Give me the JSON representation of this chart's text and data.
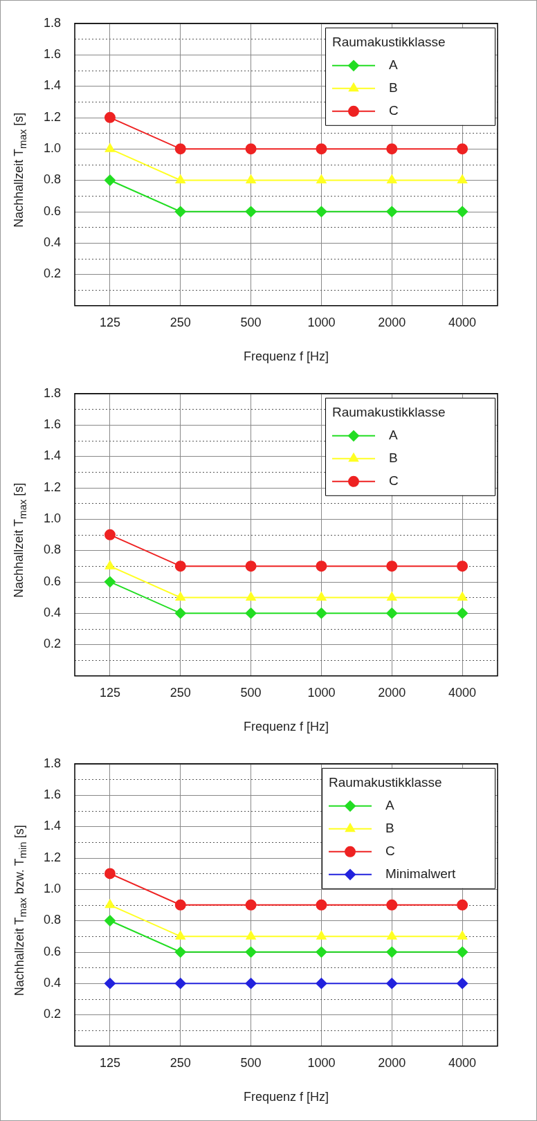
{
  "chart_data": [
    {
      "type": "line",
      "xlabel": "Frequenz f [Hz]",
      "ylabel": "Nachhallzeit T$_{max}$ [s]",
      "legend_title": "Raumakustikklasse",
      "legend": "top right",
      "grid": true,
      "line_style": "solid",
      "categories": [
        "125",
        "250",
        "500",
        "1000",
        "2000",
        "4000"
      ],
      "ylim": [
        0,
        1.8
      ],
      "yticks": [
        {
          "value": 0.1,
          "label": null
        },
        0.2,
        {
          "value": 0.3,
          "label": null
        },
        0.4,
        {
          "value": 0.5,
          "label": null
        },
        0.6,
        {
          "value": 0.7,
          "label": null
        },
        0.8,
        {
          "value": 0.9,
          "label": null
        },
        {
          "value": 1,
          "label": "1.0"
        },
        {
          "value": 1.1,
          "label": null
        },
        1.2,
        {
          "value": 1.3,
          "label": null
        },
        1.4,
        {
          "value": 1.5,
          "label": null
        },
        1.6,
        {
          "value": 1.7,
          "label": null
        },
        1.8
      ],
      "series": [
        {
          "name": "A",
          "color": "#22dd22",
          "marker": "diamond",
          "values": [
            0.8,
            0.6,
            0.6,
            0.6,
            0.6,
            0.6
          ]
        },
        {
          "name": "B",
          "color": "#ffff22",
          "marker": "triangle",
          "values": [
            1.0,
            0.8,
            0.8,
            0.8,
            0.8,
            0.8
          ]
        },
        {
          "name": "C",
          "color": "#ee2222",
          "marker": "circle",
          "values": [
            1.2,
            1.0,
            1.0,
            1.0,
            1.0,
            1.0
          ]
        }
      ]
    },
    {
      "type": "line",
      "xlabel": "Frequenz f [Hz]",
      "ylabel": "Nachhallzeit T$_{max}$ [s]",
      "legend_title": "Raumakustikklasse",
      "legend": "top right",
      "grid": true,
      "line_style": "solid",
      "categories": [
        "125",
        "250",
        "500",
        "1000",
        "2000",
        "4000"
      ],
      "ylim": [
        0,
        1.8
      ],
      "yticks": [
        {
          "value": 0.1,
          "label": null
        },
        0.2,
        {
          "value": 0.3,
          "label": null
        },
        0.4,
        {
          "value": 0.5,
          "label": null
        },
        0.6,
        {
          "value": 0.7,
          "label": null
        },
        0.8,
        {
          "value": 0.9,
          "label": null
        },
        {
          "value": 1,
          "label": "1.0"
        },
        {
          "value": 1.1,
          "label": null
        },
        1.2,
        {
          "value": 1.3,
          "label": null
        },
        1.4,
        {
          "value": 1.5,
          "label": null
        },
        1.6,
        {
          "value": 1.7,
          "label": null
        },
        1.8
      ],
      "series": [
        {
          "name": "A",
          "color": "#22dd22",
          "marker": "diamond",
          "values": [
            0.6,
            0.4,
            0.4,
            0.4,
            0.4,
            0.4
          ]
        },
        {
          "name": "B",
          "color": "#ffff22",
          "marker": "triangle",
          "values": [
            0.7,
            0.5,
            0.5,
            0.5,
            0.5,
            0.5
          ]
        },
        {
          "name": "C",
          "color": "#ee2222",
          "marker": "circle",
          "values": [
            0.9,
            0.7,
            0.7,
            0.7,
            0.7,
            0.7
          ]
        }
      ]
    },
    {
      "type": "line",
      "xlabel": "Frequenz f [Hz]",
      "ylabel": "Nachhallzeit T$_{max}$ bzw. T$_{min}$ [s]",
      "legend_title": "Raumakustikklasse",
      "legend": "top right",
      "grid": true,
      "line_style": "solid",
      "categories": [
        "125",
        "250",
        "500",
        "1000",
        "2000",
        "4000"
      ],
      "ylim": [
        0,
        1.8
      ],
      "yticks": [
        {
          "value": 0.1,
          "label": null
        },
        0.2,
        {
          "value": 0.3,
          "label": null
        },
        0.4,
        {
          "value": 0.5,
          "label": null
        },
        0.6,
        {
          "value": 0.7,
          "label": null
        },
        0.8,
        {
          "value": 0.9,
          "label": null
        },
        {
          "value": 1,
          "label": "1.0"
        },
        {
          "value": 1.1,
          "label": null
        },
        1.2,
        {
          "value": 1.3,
          "label": null
        },
        1.4,
        {
          "value": 1.5,
          "label": null
        },
        1.6,
        {
          "value": 1.7,
          "label": null
        },
        1.8
      ],
      "series": [
        {
          "name": "A",
          "color": "#22dd22",
          "marker": "diamond",
          "values": [
            0.8,
            0.6,
            0.6,
            0.6,
            0.6,
            0.6
          ]
        },
        {
          "name": "B",
          "color": "#ffff22",
          "marker": "triangle",
          "values": [
            0.9,
            0.7,
            0.7,
            0.7,
            0.7,
            0.7
          ]
        },
        {
          "name": "C",
          "color": "#ee2222",
          "marker": "circle",
          "values": [
            1.1,
            0.9,
            0.9,
            0.9,
            0.9,
            0.9
          ]
        },
        {
          "name": "Minimalwert",
          "color": "#2222dd",
          "marker": "diamond",
          "values": [
            0.4,
            0.4,
            0.4,
            0.4,
            0.4,
            0.4
          ]
        }
      ]
    }
  ]
}
